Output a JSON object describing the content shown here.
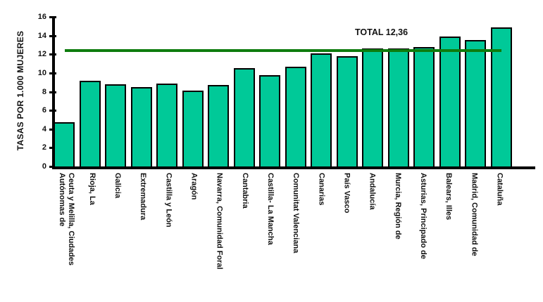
{
  "chart_data": {
    "type": "bar",
    "title": "",
    "ylabel": "TASAS POR 1.000 MUJERES",
    "xlabel": "",
    "ylim": [
      0,
      16
    ],
    "yticks": [
      0,
      2,
      4,
      6,
      8,
      10,
      12,
      14,
      16
    ],
    "grid": false,
    "legend": null,
    "categories": [
      "Ceuta y Melilla, Ciudades\nAutónomas de",
      "Rioja, La",
      "Galicia",
      "Extremadura",
      "Castilla y León",
      "Aragón",
      "Navarra, Comunidad Foral",
      "Cantabria",
      "Castilla- La Mancha",
      "Comunitat Valenciana",
      "Canarias",
      "País Vasco",
      "Andalucía",
      "Murcia, Región de",
      "Asturias, Principado de",
      "Balears, Illes",
      "Madrid, Comunidad de",
      "Cataluña"
    ],
    "values": [
      4.7,
      9.2,
      8.8,
      8.5,
      8.9,
      8.1,
      8.7,
      10.5,
      9.8,
      10.7,
      12.1,
      11.8,
      12.6,
      12.6,
      12.8,
      13.9,
      13.5,
      14.9
    ],
    "reference_line": {
      "label": "TOTAL 12,36",
      "value": 12.36
    },
    "colors": {
      "bar_fill": "#00C998",
      "bar_border": "#000000",
      "axis": "#000000",
      "reference_line": "#0E7C0E",
      "text": "#111111"
    }
  }
}
